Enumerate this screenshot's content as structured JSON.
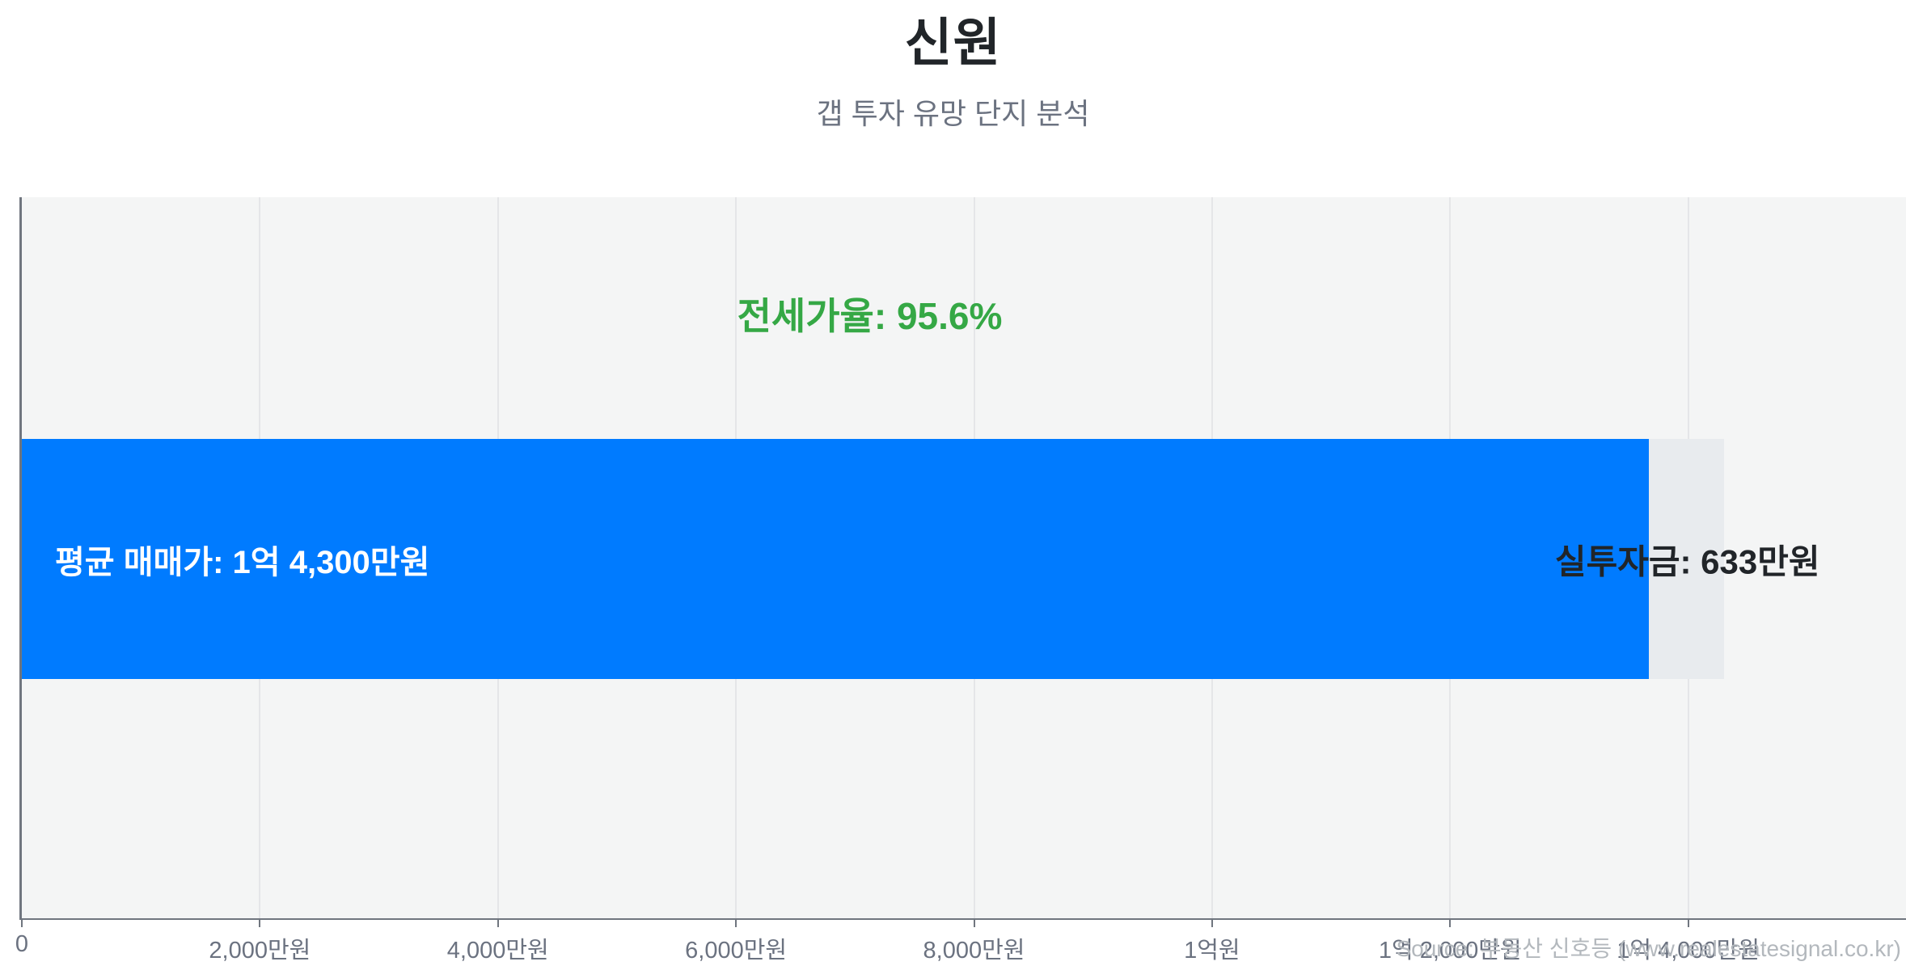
{
  "header": {
    "title": "신원",
    "subtitle": "갭 투자 유망 단지 분석"
  },
  "chart_data": {
    "type": "bar",
    "orientation": "horizontal",
    "title": "신원",
    "subtitle": "갭 투자 유망 단지 분석",
    "unit": "만원",
    "x_axis_max": 15830,
    "bars": [
      {
        "name": "평균 매매가",
        "value": 14300,
        "color_key": "bar_gray"
      },
      {
        "name": "전세가",
        "value": 13667,
        "color_key": "bar_blue"
      }
    ],
    "labels": {
      "jeonse_ratio": "전세가율: 95.6%",
      "sale_price": "평균 매매가: 1억 4,300만원",
      "net_investment": "실투자금: 633만원"
    },
    "jeonse_ratio_percent": 95.6,
    "net_investment_value": 633,
    "x_ticks": [
      {
        "value": 0,
        "label": "0"
      },
      {
        "value": 2000,
        "label": "2,000만원"
      },
      {
        "value": 4000,
        "label": "4,000만원"
      },
      {
        "value": 6000,
        "label": "6,000만원"
      },
      {
        "value": 8000,
        "label": "8,000만원"
      },
      {
        "value": 10000,
        "label": "1억원"
      },
      {
        "value": 12000,
        "label": "1억 2,000만원"
      },
      {
        "value": 14000,
        "label": "1억 4,000만원"
      }
    ],
    "grid": true,
    "legend": false,
    "watermark": "Source: 부동산 신호등 (www.realestatesignal.co.kr)"
  },
  "colors": {
    "bar_blue": "#007bff",
    "bar_gray": "#e8ebee",
    "plot_bg": "#f4f5f5",
    "grid": "#e5e6e8",
    "axis": "#70767f",
    "text_dark": "#212529",
    "text_muted": "#6b7280",
    "green": "#35a845",
    "watermark": "#b3b8bd"
  }
}
